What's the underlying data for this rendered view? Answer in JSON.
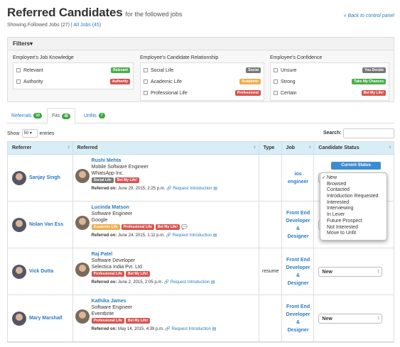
{
  "header": {
    "title": "Referred Candidates",
    "subtitle": "for the followed jobs",
    "back_prefix": "« Back to",
    "back_link": "control panel",
    "showing_prefix": "Showing Followed Jobs (27)",
    "all_jobs": "All Jobs (45)"
  },
  "filters": {
    "label": "Filters",
    "groups": [
      {
        "title": "Employee's Job Knowledge",
        "items": [
          {
            "label": "Relevant",
            "badge": "Relevant",
            "color": "#4cae4c"
          },
          {
            "label": "Authority",
            "badge": "Authority",
            "color": "#d9534f"
          }
        ]
      },
      {
        "title": "Employee's Candidate Relationship",
        "items": [
          {
            "label": "Social Life",
            "badge": "Social",
            "color": "#777777"
          },
          {
            "label": "Academic Life",
            "badge": "Academic",
            "color": "#f0ad4e"
          },
          {
            "label": "Professional Life",
            "badge": "Professional",
            "color": "#d9534f"
          }
        ]
      },
      {
        "title": "Employee's Confidence",
        "items": [
          {
            "label": "Unsure",
            "badge": "You Decide",
            "color": "#777777"
          },
          {
            "label": "Strong",
            "badge": "Take My Chances",
            "color": "#4cae4c"
          },
          {
            "label": "Certain",
            "badge": "Bet My Life!",
            "color": "#d9534f"
          }
        ]
      }
    ]
  },
  "tabs": [
    {
      "label": "Referrals",
      "count": "10"
    },
    {
      "label": "Fits",
      "count": "48"
    },
    {
      "label": "Unfits",
      "count": "7"
    }
  ],
  "controls": {
    "show": "Show",
    "entries_value": "50",
    "entries": "entries",
    "search": "Search:"
  },
  "table": {
    "headers": [
      "Referrer",
      "Referred",
      "Type",
      "Job",
      "Candidate Status"
    ],
    "rows": [
      {
        "referrer": "Sanjay Singh",
        "name": "Rushi Mehta",
        "role": "Mobile Software Engineer",
        "company": "WhatsApp Inc.",
        "tags": [
          {
            "text": "Social Life",
            "color": "#777777"
          },
          {
            "text": "Bet My Life!",
            "color": "#d9534f"
          }
        ],
        "referred_on_label": "Referred on:",
        "referred_on": "June 29, 2015, 2:25 p.m.",
        "request": "Request Introduction",
        "type": "",
        "job": [
          "ios",
          "engineer"
        ],
        "status": "New"
      },
      {
        "referrer": "Nolan Van Ess",
        "name": "Lucinda Matson",
        "role": "Software Engineer",
        "company": "Google",
        "tags": [
          {
            "text": "Academic Life",
            "color": "#f0ad4e"
          },
          {
            "text": "Professional Life",
            "color": "#d9534f"
          },
          {
            "text": "Bet My Life!",
            "color": "#d9534f"
          }
        ],
        "referred_on_label": "Referred on:",
        "referred_on": "June 24, 2015, 1:11 p.m.",
        "request": "Request Introduction",
        "type": "",
        "job": [
          "Front End",
          "Developer",
          "&",
          "Designer"
        ],
        "status": ""
      },
      {
        "referrer": "Vick Dutta",
        "name": "Raj Patel",
        "role": "Software Developer",
        "company": "Selectica India Pvt. Ltd",
        "tags": [
          {
            "text": "Professional Life",
            "color": "#d9534f"
          },
          {
            "text": "Bet My Life!",
            "color": "#d9534f"
          }
        ],
        "referred_on_label": "Referred on:",
        "referred_on": "June 2, 2015, 2:05 p.m.",
        "request": "Request Introduction",
        "type": "resume",
        "job": [
          "Front End",
          "Developer",
          "&",
          "Designer"
        ],
        "status": "New"
      },
      {
        "referrer": "Mary Marshall",
        "name": "Kathika James",
        "role": "Software Engineer",
        "company": "Eventbrite",
        "tags": [
          {
            "text": "Professional Life",
            "color": "#d9534f"
          },
          {
            "text": "Bet My Life!",
            "color": "#d9534f"
          }
        ],
        "referred_on_label": "Referred on:",
        "referred_on": "May 14, 2015, 4:39 p.m.",
        "request": "Request Introduction",
        "type": "",
        "job": [
          "Front End",
          "Developer",
          "&",
          "Designer"
        ],
        "status": "New"
      }
    ]
  },
  "status_dropdown": {
    "button": "Current Status",
    "options": [
      "New",
      "Browsed",
      "Contacted",
      "Introduction Requested",
      "Interested",
      "Interviewing",
      "In Lever",
      "Future Prospect",
      "Not Interested",
      "Move to Unfit"
    ],
    "selected": "New"
  }
}
